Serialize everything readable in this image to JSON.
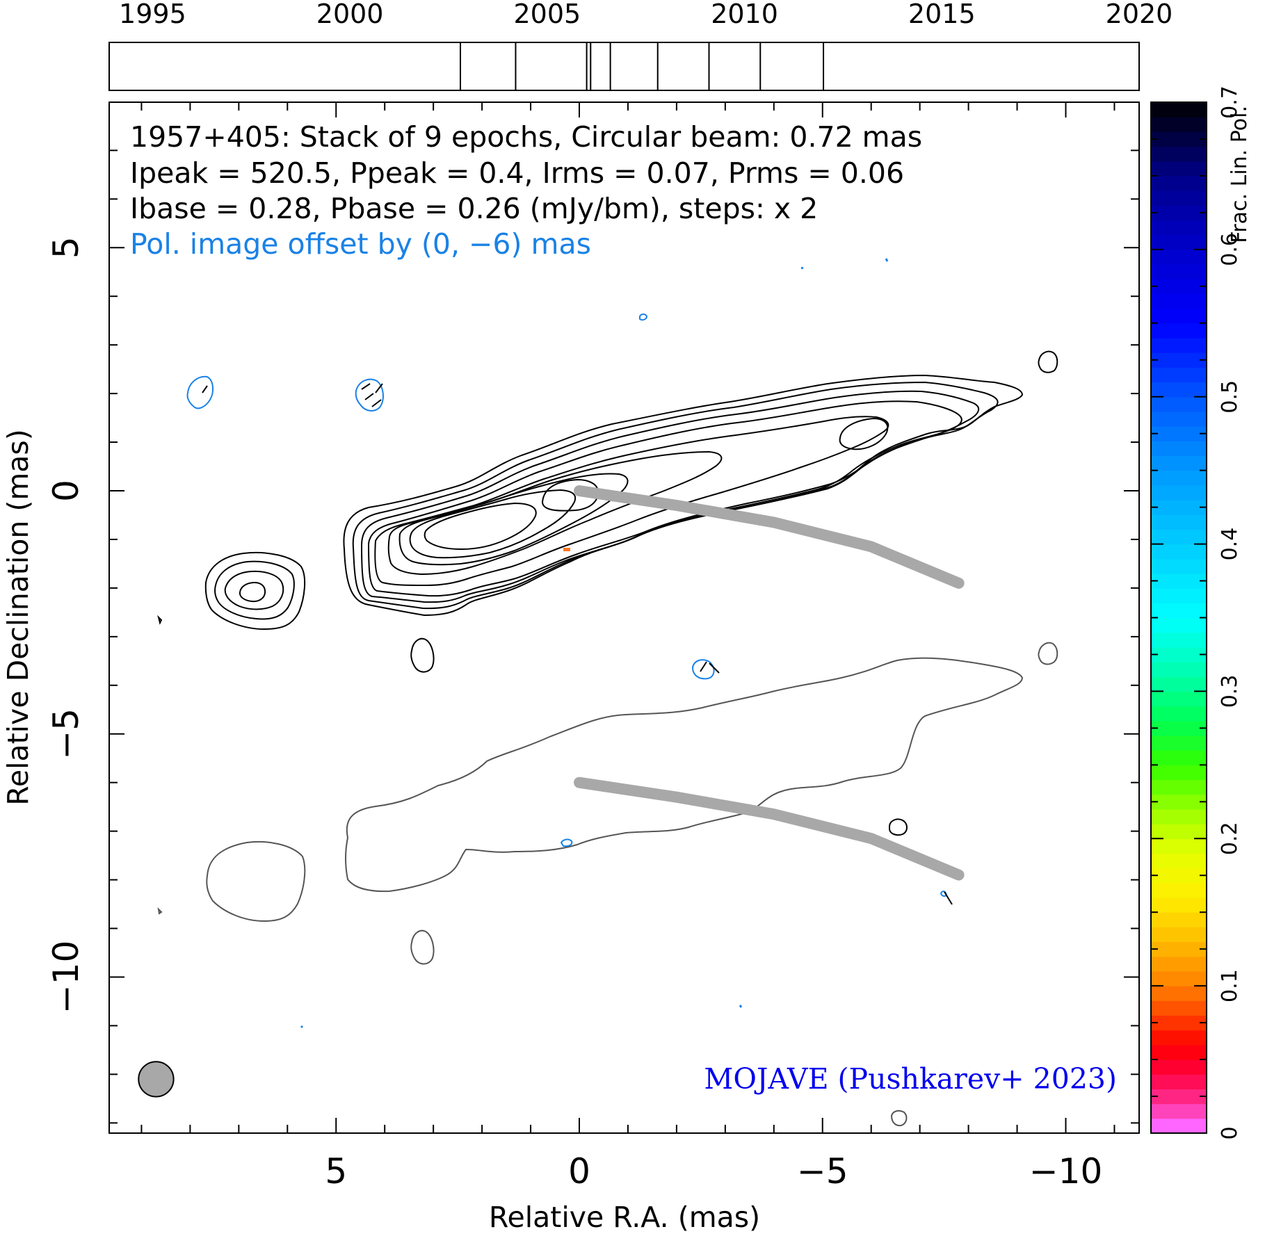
{
  "chart_data": {
    "type": "contour",
    "annotations": {
      "line1": "1957+405: Stack of 9 epochs, Circular beam: 0.72 mas",
      "line2": "Ipeak = 520.5, Ppeak = 0.4, Irms = 0.07, Prms = 0.06",
      "line3": "Ibase = 0.28, Pbase = 0.26 (mJy/bm), steps: x 2",
      "line4": "Pol. image offset by (0, −6) mas",
      "credit": "MOJAVE (Pushkarev+ 2023)"
    },
    "xlabel": "Relative R.A. (mas)",
    "ylabel": "Relative Declination (mas)",
    "xlim": [
      9.6,
      -11.5
    ],
    "ylim": [
      -13.2,
      8
    ],
    "x_ticks": [
      5,
      0,
      -5,
      -10
    ],
    "x_tick_labels": [
      "5",
      "0",
      "−5",
      "−10"
    ],
    "y_ticks": [
      5,
      0,
      -5,
      -10
    ],
    "y_tick_labels": [
      "5",
      "0",
      "−5",
      "−10"
    ],
    "epoch_axis": {
      "range": [
        1993.9,
        2020.0
      ],
      "ticks": [
        1995,
        2000,
        2005,
        2010,
        2015,
        2020
      ],
      "tick_labels": [
        "1995",
        "2000",
        "2005",
        "2010",
        "2015",
        "2020"
      ],
      "epochs": [
        2002.8,
        2004.2,
        2006.0,
        2006.1,
        2006.6,
        2007.8,
        2009.1,
        2010.4,
        2012.0
      ]
    },
    "colorbar": {
      "label": "Frac. Lin. Pol.",
      "range": [
        0,
        0.7
      ],
      "ticks": [
        0,
        0.1,
        0.2,
        0.3,
        0.4,
        0.5,
        0.6,
        0.7
      ],
      "tick_labels": [
        "0",
        "0.1",
        "0.2",
        "0.3",
        "0.4",
        "0.5",
        "0.6",
        "0.7"
      ]
    },
    "beam_diameter_mas": 0.72,
    "ridgeline": [
      [
        0,
        0
      ],
      [
        -2,
        -0.3
      ],
      [
        -4,
        -0.65
      ],
      [
        -6,
        -1.15
      ],
      [
        -7.8,
        -1.9
      ]
    ],
    "colors": {
      "stokes_i": "#000000",
      "polarization_contour": "#1a82e6",
      "polarization_outline": "#555555",
      "ridgeline": "#a8a8a8",
      "credit": "#0000ee",
      "beam": "#a8a8a8"
    }
  }
}
